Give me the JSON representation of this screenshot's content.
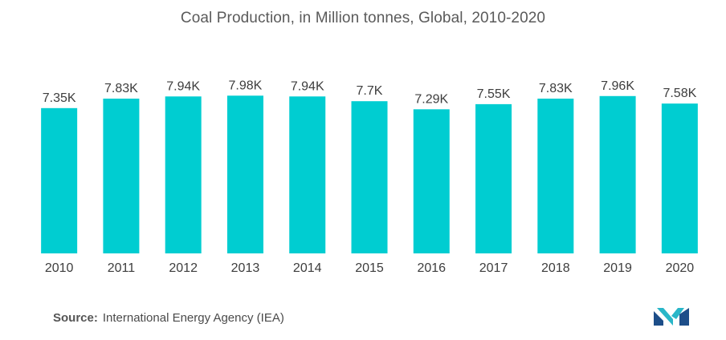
{
  "chart_data": {
    "type": "bar",
    "title": "Coal Production, in Million tonnes, Global, 2010-2020",
    "categories": [
      "2010",
      "2011",
      "2012",
      "2013",
      "2014",
      "2015",
      "2016",
      "2017",
      "2018",
      "2019",
      "2020"
    ],
    "values": [
      7350,
      7830,
      7940,
      7980,
      7940,
      7700,
      7290,
      7550,
      7830,
      7960,
      7580
    ],
    "data_labels": [
      "7.35K",
      "7.83K",
      "7.94K",
      "7.98K",
      "7.94K",
      "7.7K",
      "7.29K",
      "7.55K",
      "7.83K",
      "7.96K",
      "7.58K"
    ],
    "xlabel": "",
    "ylabel": "",
    "ylim": [
      0,
      8000
    ],
    "grid": false,
    "legend": "none",
    "bar_color": "#00cdd1"
  },
  "source": {
    "label": "Source:",
    "text": "International Energy Agency (IEA)"
  },
  "logo": {
    "icon": "mordor-intelligence-logo-icon",
    "colors": [
      "#1d4e89",
      "#29b6c8"
    ]
  }
}
